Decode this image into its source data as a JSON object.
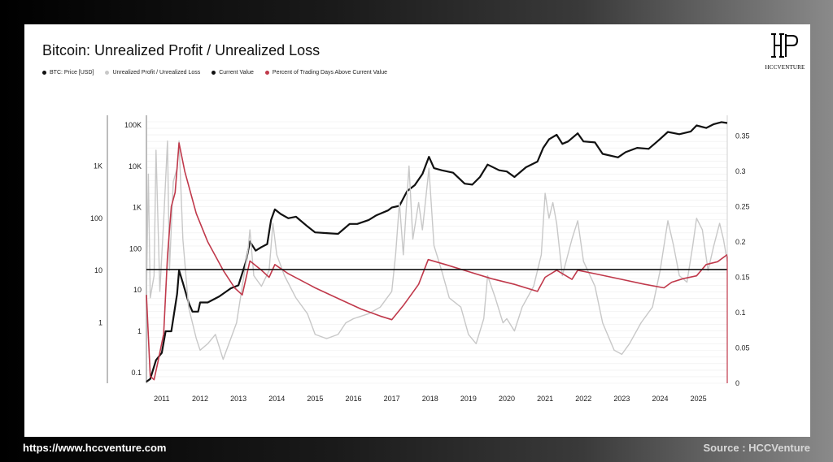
{
  "card": {
    "title": "Bitcoin: Unrealized Profit / Unrealized Loss",
    "logo_text": "HCCVENTURE"
  },
  "legend": [
    {
      "label": "BTC: Price [USD]",
      "color": "#111111"
    },
    {
      "label": "Unrealized Profit / Unrealized Loss",
      "color": "#c8c8c8"
    },
    {
      "label": "Current Value",
      "color": "#111111"
    },
    {
      "label": "Percent of Trading Days Above Current Value",
      "color": "#c0394b"
    }
  ],
  "footer": {
    "url": "https://www.hccventure.com",
    "source": "Source : HCCVenture"
  },
  "colors": {
    "price": "#111111",
    "ratio": "#c8c8c8",
    "current": "#111111",
    "percent": "#c0394b"
  },
  "chart_data": {
    "type": "line",
    "title": "Bitcoin: Unrealized Profit / Unrealized Loss",
    "x_ticks": [
      "2011",
      "2012",
      "2013",
      "2014",
      "2015",
      "2016",
      "2017",
      "2018",
      "2019",
      "2020",
      "2021",
      "2022",
      "2023",
      "2024",
      "2025"
    ],
    "x_range": [
      2010.6,
      2025.75
    ],
    "y_inner": {
      "label": "",
      "scale": "log",
      "ticks": [
        "0.1",
        "1",
        "10",
        "100",
        "1K",
        "10K",
        "100K"
      ],
      "range": [
        0.055,
        120000
      ]
    },
    "y_outer": {
      "label": "",
      "scale": "log",
      "ticks": [
        "1",
        "10",
        "100",
        "1K"
      ],
      "range": [
        0.07,
        7000
      ]
    },
    "y_right": {
      "label": "",
      "scale": "linear",
      "ticks": [
        "0",
        "0.05",
        "0.1",
        "0.15",
        "0.2",
        "0.25",
        "0.3",
        "0.35"
      ],
      "range": [
        0,
        0.37
      ]
    },
    "grid": "horizontal",
    "legend_placement": "top-left",
    "current_value": 10.5,
    "series": [
      {
        "name": "BTC: Price [USD]",
        "axis": "y_inner",
        "points": [
          [
            2010.6,
            0.06
          ],
          [
            2010.7,
            0.07
          ],
          [
            2010.85,
            0.2
          ],
          [
            2011.0,
            0.3
          ],
          [
            2011.1,
            1
          ],
          [
            2011.25,
            1
          ],
          [
            2011.4,
            8
          ],
          [
            2011.45,
            30
          ],
          [
            2011.55,
            15
          ],
          [
            2011.7,
            5
          ],
          [
            2011.8,
            3
          ],
          [
            2011.95,
            3
          ],
          [
            2012.0,
            5
          ],
          [
            2012.2,
            5
          ],
          [
            2012.5,
            7
          ],
          [
            2012.8,
            11
          ],
          [
            2013.0,
            13
          ],
          [
            2013.2,
            50
          ],
          [
            2013.3,
            150
          ],
          [
            2013.45,
            90
          ],
          [
            2013.6,
            110
          ],
          [
            2013.75,
            130
          ],
          [
            2013.85,
            500
          ],
          [
            2013.95,
            900
          ],
          [
            2014.1,
            700
          ],
          [
            2014.3,
            550
          ],
          [
            2014.5,
            600
          ],
          [
            2014.8,
            350
          ],
          [
            2015.0,
            250
          ],
          [
            2015.3,
            240
          ],
          [
            2015.6,
            230
          ],
          [
            2015.9,
            400
          ],
          [
            2016.1,
            400
          ],
          [
            2016.4,
            500
          ],
          [
            2016.6,
            650
          ],
          [
            2016.9,
            850
          ],
          [
            2017.0,
            1000
          ],
          [
            2017.2,
            1100
          ],
          [
            2017.4,
            2500
          ],
          [
            2017.6,
            3500
          ],
          [
            2017.8,
            6500
          ],
          [
            2017.97,
            17000
          ],
          [
            2018.1,
            9000
          ],
          [
            2018.3,
            8000
          ],
          [
            2018.6,
            7000
          ],
          [
            2018.9,
            3800
          ],
          [
            2019.1,
            3600
          ],
          [
            2019.3,
            5500
          ],
          [
            2019.5,
            11000
          ],
          [
            2019.8,
            8000
          ],
          [
            2020.0,
            7500
          ],
          [
            2020.2,
            5500
          ],
          [
            2020.5,
            9500
          ],
          [
            2020.8,
            13000
          ],
          [
            2020.95,
            28000
          ],
          [
            2021.1,
            45000
          ],
          [
            2021.3,
            58000
          ],
          [
            2021.45,
            35000
          ],
          [
            2021.6,
            40000
          ],
          [
            2021.85,
            63000
          ],
          [
            2022.0,
            40000
          ],
          [
            2022.3,
            38000
          ],
          [
            2022.5,
            20000
          ],
          [
            2022.9,
            16500
          ],
          [
            2023.1,
            22000
          ],
          [
            2023.4,
            28000
          ],
          [
            2023.7,
            26500
          ],
          [
            2023.95,
            42000
          ],
          [
            2024.2,
            68000
          ],
          [
            2024.5,
            60000
          ],
          [
            2024.8,
            70000
          ],
          [
            2024.95,
            98000
          ],
          [
            2025.2,
            85000
          ],
          [
            2025.4,
            105000
          ],
          [
            2025.6,
            118000
          ],
          [
            2025.75,
            112000
          ]
        ]
      },
      {
        "name": "Unrealized Profit / Unrealized Loss",
        "axis": "y_outer",
        "points": [
          [
            2010.6,
            3
          ],
          [
            2010.65,
            700
          ],
          [
            2010.7,
            3
          ],
          [
            2010.8,
            8
          ],
          [
            2010.85,
            2000
          ],
          [
            2010.95,
            4
          ],
          [
            2011.05,
            90
          ],
          [
            2011.15,
            3000
          ],
          [
            2011.2,
            10
          ],
          [
            2011.3,
            500
          ],
          [
            2011.4,
            900
          ],
          [
            2011.45,
            3000
          ],
          [
            2011.55,
            40
          ],
          [
            2011.7,
            2
          ],
          [
            2011.9,
            0.5
          ],
          [
            2012.0,
            0.3
          ],
          [
            2012.2,
            0.4
          ],
          [
            2012.4,
            0.6
          ],
          [
            2012.6,
            0.2
          ],
          [
            2012.8,
            0.5
          ],
          [
            2012.95,
            1
          ],
          [
            2013.1,
            5
          ],
          [
            2013.25,
            25
          ],
          [
            2013.3,
            60
          ],
          [
            2013.4,
            8
          ],
          [
            2013.6,
            5
          ],
          [
            2013.8,
            10
          ],
          [
            2013.9,
            80
          ],
          [
            2014.0,
            20
          ],
          [
            2014.2,
            8
          ],
          [
            2014.5,
            3
          ],
          [
            2014.8,
            1.5
          ],
          [
            2015.0,
            0.6
          ],
          [
            2015.3,
            0.5
          ],
          [
            2015.6,
            0.6
          ],
          [
            2015.8,
            1
          ],
          [
            2016.0,
            1.2
          ],
          [
            2016.4,
            1.5
          ],
          [
            2016.7,
            2
          ],
          [
            2017.0,
            4
          ],
          [
            2017.1,
            20
          ],
          [
            2017.2,
            200
          ],
          [
            2017.3,
            20
          ],
          [
            2017.45,
            1000
          ],
          [
            2017.55,
            40
          ],
          [
            2017.7,
            200
          ],
          [
            2017.8,
            60
          ],
          [
            2017.97,
            900
          ],
          [
            2018.1,
            30
          ],
          [
            2018.3,
            10
          ],
          [
            2018.5,
            3
          ],
          [
            2018.8,
            2
          ],
          [
            2019.0,
            0.6
          ],
          [
            2019.2,
            0.4
          ],
          [
            2019.4,
            1.2
          ],
          [
            2019.5,
            8
          ],
          [
            2019.7,
            3
          ],
          [
            2019.9,
            1
          ],
          [
            2020.0,
            1.2
          ],
          [
            2020.2,
            0.7
          ],
          [
            2020.4,
            2
          ],
          [
            2020.7,
            5
          ],
          [
            2020.9,
            20
          ],
          [
            2021.0,
            300
          ],
          [
            2021.1,
            100
          ],
          [
            2021.2,
            200
          ],
          [
            2021.3,
            80
          ],
          [
            2021.45,
            8
          ],
          [
            2021.7,
            40
          ],
          [
            2021.85,
            90
          ],
          [
            2022.0,
            15
          ],
          [
            2022.3,
            5
          ],
          [
            2022.5,
            1
          ],
          [
            2022.8,
            0.3
          ],
          [
            2023.0,
            0.25
          ],
          [
            2023.2,
            0.4
          ],
          [
            2023.5,
            1
          ],
          [
            2023.8,
            2
          ],
          [
            2024.0,
            10
          ],
          [
            2024.2,
            90
          ],
          [
            2024.35,
            30
          ],
          [
            2024.5,
            8
          ],
          [
            2024.7,
            6
          ],
          [
            2024.85,
            30
          ],
          [
            2024.95,
            100
          ],
          [
            2025.1,
            60
          ],
          [
            2025.25,
            10
          ],
          [
            2025.4,
            30
          ],
          [
            2025.55,
            80
          ],
          [
            2025.65,
            40
          ],
          [
            2025.75,
            15
          ]
        ]
      },
      {
        "name": "Percent of Trading Days Above Current Value",
        "axis": "y_right",
        "points": [
          [
            2010.6,
            0.125
          ],
          [
            2010.7,
            0.01
          ],
          [
            2010.8,
            0.005
          ],
          [
            2010.9,
            0.03
          ],
          [
            2011.05,
            0.07
          ],
          [
            2011.15,
            0.18
          ],
          [
            2011.25,
            0.25
          ],
          [
            2011.35,
            0.27
          ],
          [
            2011.45,
            0.34
          ],
          [
            2011.6,
            0.3
          ],
          [
            2011.9,
            0.24
          ],
          [
            2012.2,
            0.2
          ],
          [
            2012.6,
            0.16
          ],
          [
            2012.9,
            0.135
          ],
          [
            2013.1,
            0.125
          ],
          [
            2013.3,
            0.173
          ],
          [
            2013.6,
            0.16
          ],
          [
            2013.8,
            0.15
          ],
          [
            2013.95,
            0.168
          ],
          [
            2014.3,
            0.155
          ],
          [
            2015.0,
            0.135
          ],
          [
            2015.6,
            0.12
          ],
          [
            2016.2,
            0.105
          ],
          [
            2016.7,
            0.095
          ],
          [
            2017.0,
            0.09
          ],
          [
            2017.3,
            0.11
          ],
          [
            2017.7,
            0.14
          ],
          [
            2017.95,
            0.175
          ],
          [
            2018.4,
            0.168
          ],
          [
            2019.0,
            0.158
          ],
          [
            2019.6,
            0.148
          ],
          [
            2020.2,
            0.14
          ],
          [
            2020.8,
            0.13
          ],
          [
            2021.0,
            0.15
          ],
          [
            2021.3,
            0.16
          ],
          [
            2021.7,
            0.147
          ],
          [
            2021.85,
            0.16
          ],
          [
            2022.3,
            0.155
          ],
          [
            2023.0,
            0.147
          ],
          [
            2023.6,
            0.14
          ],
          [
            2024.1,
            0.135
          ],
          [
            2024.3,
            0.143
          ],
          [
            2024.6,
            0.148
          ],
          [
            2024.95,
            0.152
          ],
          [
            2025.2,
            0.168
          ],
          [
            2025.5,
            0.172
          ],
          [
            2025.75,
            0.182
          ]
        ]
      },
      {
        "name": "Current Value",
        "axis": "y_outer",
        "points": [
          [
            2010.6,
            10.5
          ],
          [
            2025.75,
            10.5
          ]
        ]
      }
    ]
  }
}
